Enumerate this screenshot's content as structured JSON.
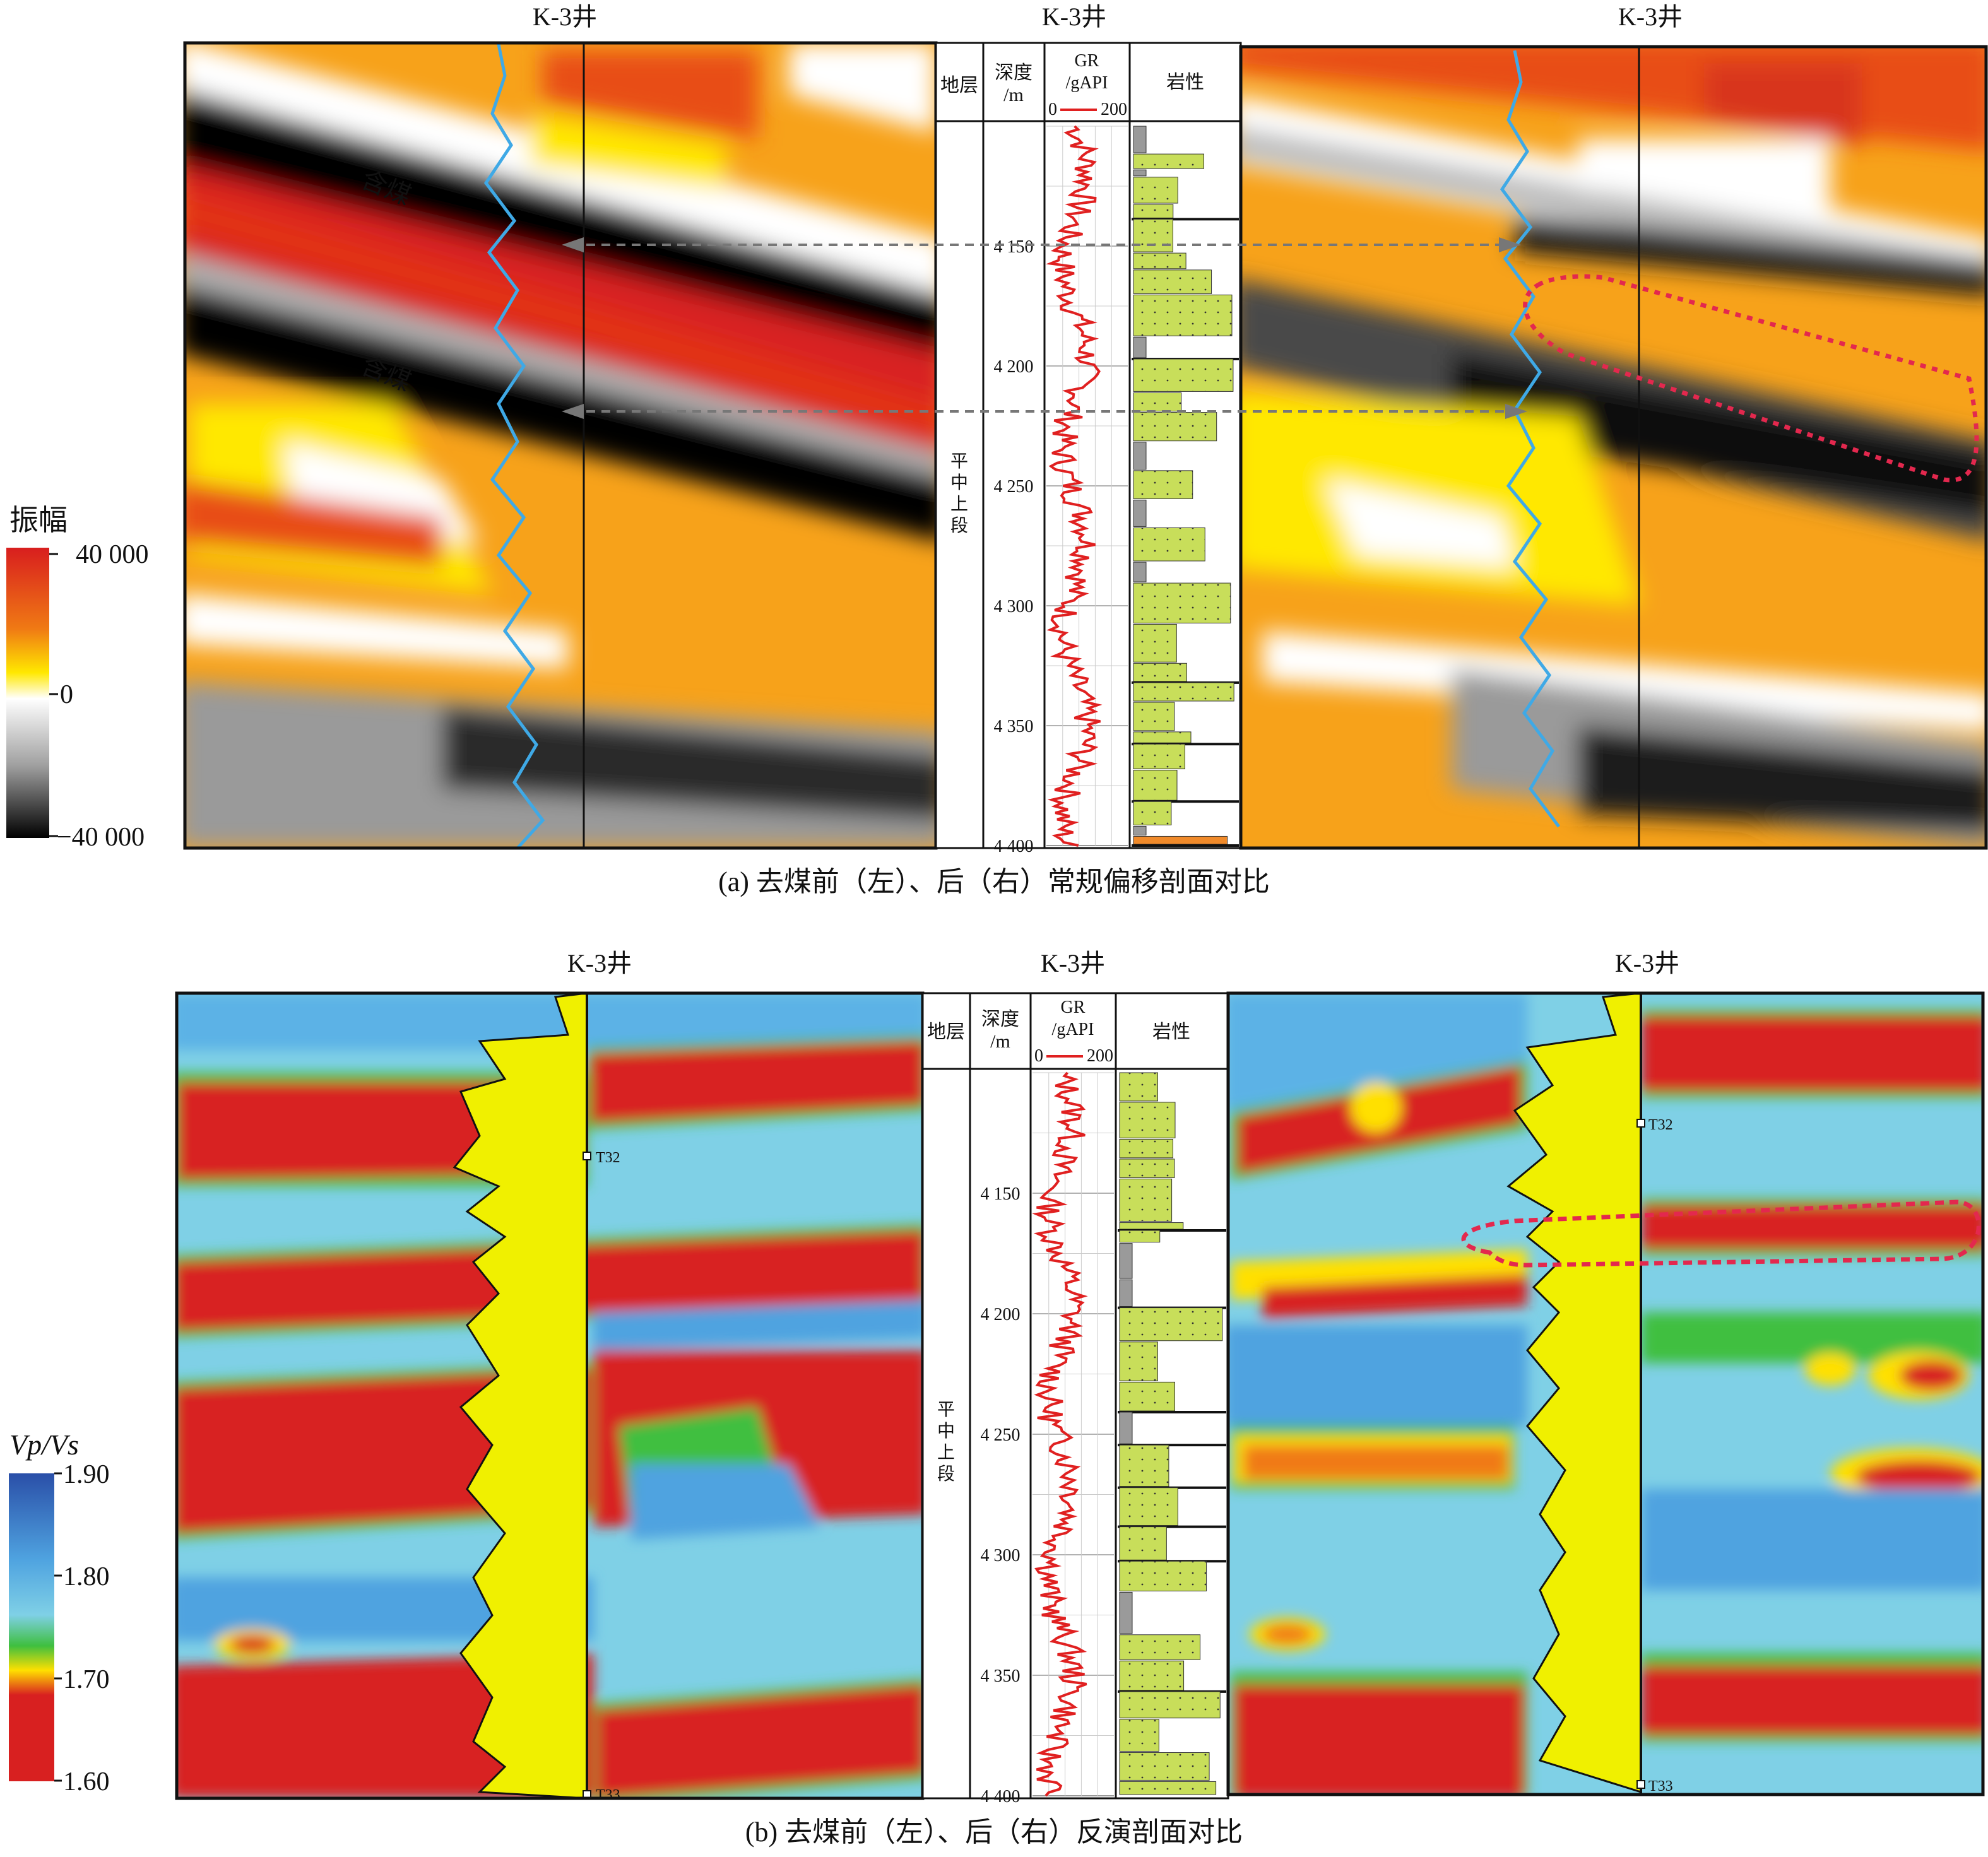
{
  "figure": {
    "panel_a": {
      "well_label": "K-3井",
      "caption": "(a) 去煤前（左）、后（右）常规偏移剖面对比",
      "coal_labels": [
        "含煤",
        "含煤"
      ],
      "colorbar": {
        "title": "振幅",
        "ticks": [
          "40 000",
          "0",
          "−40 000"
        ],
        "colors": [
          "#d81e1e",
          "#f07a14",
          "#ffe800",
          "#ffffff",
          "#a0a0a0",
          "#000000"
        ]
      }
    },
    "panel_b": {
      "well_label": "K-3井",
      "caption": "(b) 去煤前（左）、后（右）反演剖面对比",
      "horizon_labels": [
        "T32",
        "T33"
      ],
      "colorbar": {
        "title_main": "Vp/Vs",
        "ticks": [
          "1.90",
          "1.80",
          "1.70",
          "1.60"
        ],
        "colors": [
          "#2a4fa8",
          "#4fa3e0",
          "#7fd0e6",
          "#3fbf3f",
          "#ffe000",
          "#d82020"
        ]
      }
    },
    "log_track": {
      "headers": {
        "strata": "地层",
        "depth": "深度",
        "depth_unit": "/m",
        "gr": "GR",
        "gr_unit": "/gAPI",
        "gr_min": "0",
        "gr_max": "200",
        "lith": "岩性"
      },
      "strata_name": [
        "平",
        "中",
        "上",
        "段"
      ],
      "depth_ticks": [
        "4 150",
        "4 200",
        "4 250",
        "4 300",
        "4 350",
        "4 400"
      ],
      "colors": {
        "gr_curve": "#e02020",
        "lith_fill": "#c8de5a",
        "lith_coal": "#9a9a9a",
        "lith_orange": "#f08a2a"
      }
    }
  }
}
